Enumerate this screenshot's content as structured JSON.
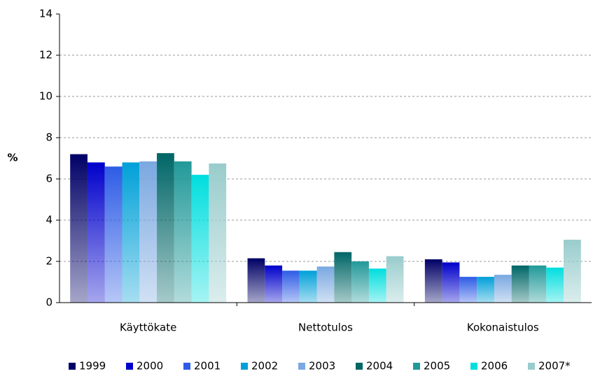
{
  "chart_data": {
    "type": "bar",
    "ylabel": "%",
    "categories": [
      "Käyttökate",
      "Nettotulos",
      "Kokonaistulos"
    ],
    "series": [
      {
        "name": "1999",
        "color": "#000066",
        "values": [
          7.2,
          2.15,
          2.1
        ]
      },
      {
        "name": "2000",
        "color": "#0000cc",
        "values": [
          6.8,
          1.8,
          1.95
        ]
      },
      {
        "name": "2001",
        "color": "#2e5ce6",
        "values": [
          6.6,
          1.55,
          1.25
        ]
      },
      {
        "name": "2002",
        "color": "#00a0d8",
        "values": [
          6.8,
          1.55,
          1.25
        ]
      },
      {
        "name": "2003",
        "color": "#7aa8e0",
        "values": [
          6.85,
          1.75,
          1.35
        ]
      },
      {
        "name": "2004",
        "color": "#006666",
        "values": [
          7.25,
          2.45,
          1.8
        ]
      },
      {
        "name": "2005",
        "color": "#229999",
        "values": [
          6.85,
          2.0,
          1.8
        ]
      },
      {
        "name": "2006",
        "color": "#00dede",
        "values": [
          6.2,
          1.65,
          1.7
        ]
      },
      {
        "name": "2007*",
        "color": "#99cccc",
        "values": [
          6.75,
          2.25,
          3.05
        ]
      }
    ],
    "ylim": [
      0,
      14
    ],
    "yticks": [
      0,
      2,
      4,
      6,
      8,
      10,
      12,
      14
    ],
    "grid": true,
    "legend": "bottom"
  }
}
